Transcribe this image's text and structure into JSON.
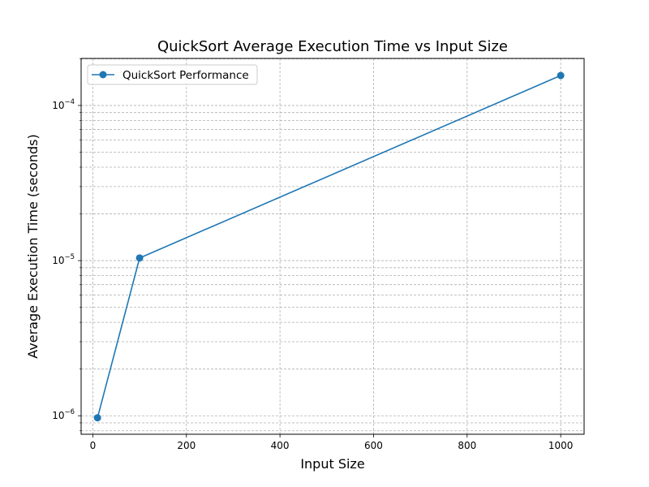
{
  "chart_data": {
    "type": "line",
    "title": "QuickSort Average Execution Time vs Input Size",
    "xlabel": "Input Size",
    "ylabel": "Average Execution Time (seconds)",
    "xlim": [
      -25,
      1050
    ],
    "ylim": [
      7.6e-07,
      0.000201
    ],
    "yscale": "log",
    "grid": true,
    "legend_position": "top-left",
    "x_ticks": [
      {
        "value": 0,
        "label": "0"
      },
      {
        "value": 200,
        "label": "200"
      },
      {
        "value": 400,
        "label": "400"
      },
      {
        "value": 600,
        "label": "600"
      },
      {
        "value": 800,
        "label": "800"
      },
      {
        "value": 1000,
        "label": "1000"
      }
    ],
    "y_ticks": [
      {
        "value": 1e-06,
        "base": "10",
        "exp": "−6"
      },
      {
        "value": 1e-05,
        "base": "10",
        "exp": "−5"
      },
      {
        "value": 0.0001,
        "base": "10",
        "exp": "−4"
      }
    ],
    "series": [
      {
        "name": "QuickSort Performance",
        "color": "#1f77b4",
        "marker": "circle",
        "x": [
          10,
          100,
          1000
        ],
        "y": [
          9.7e-07,
          1.04e-05,
          0.000156
        ]
      }
    ]
  }
}
